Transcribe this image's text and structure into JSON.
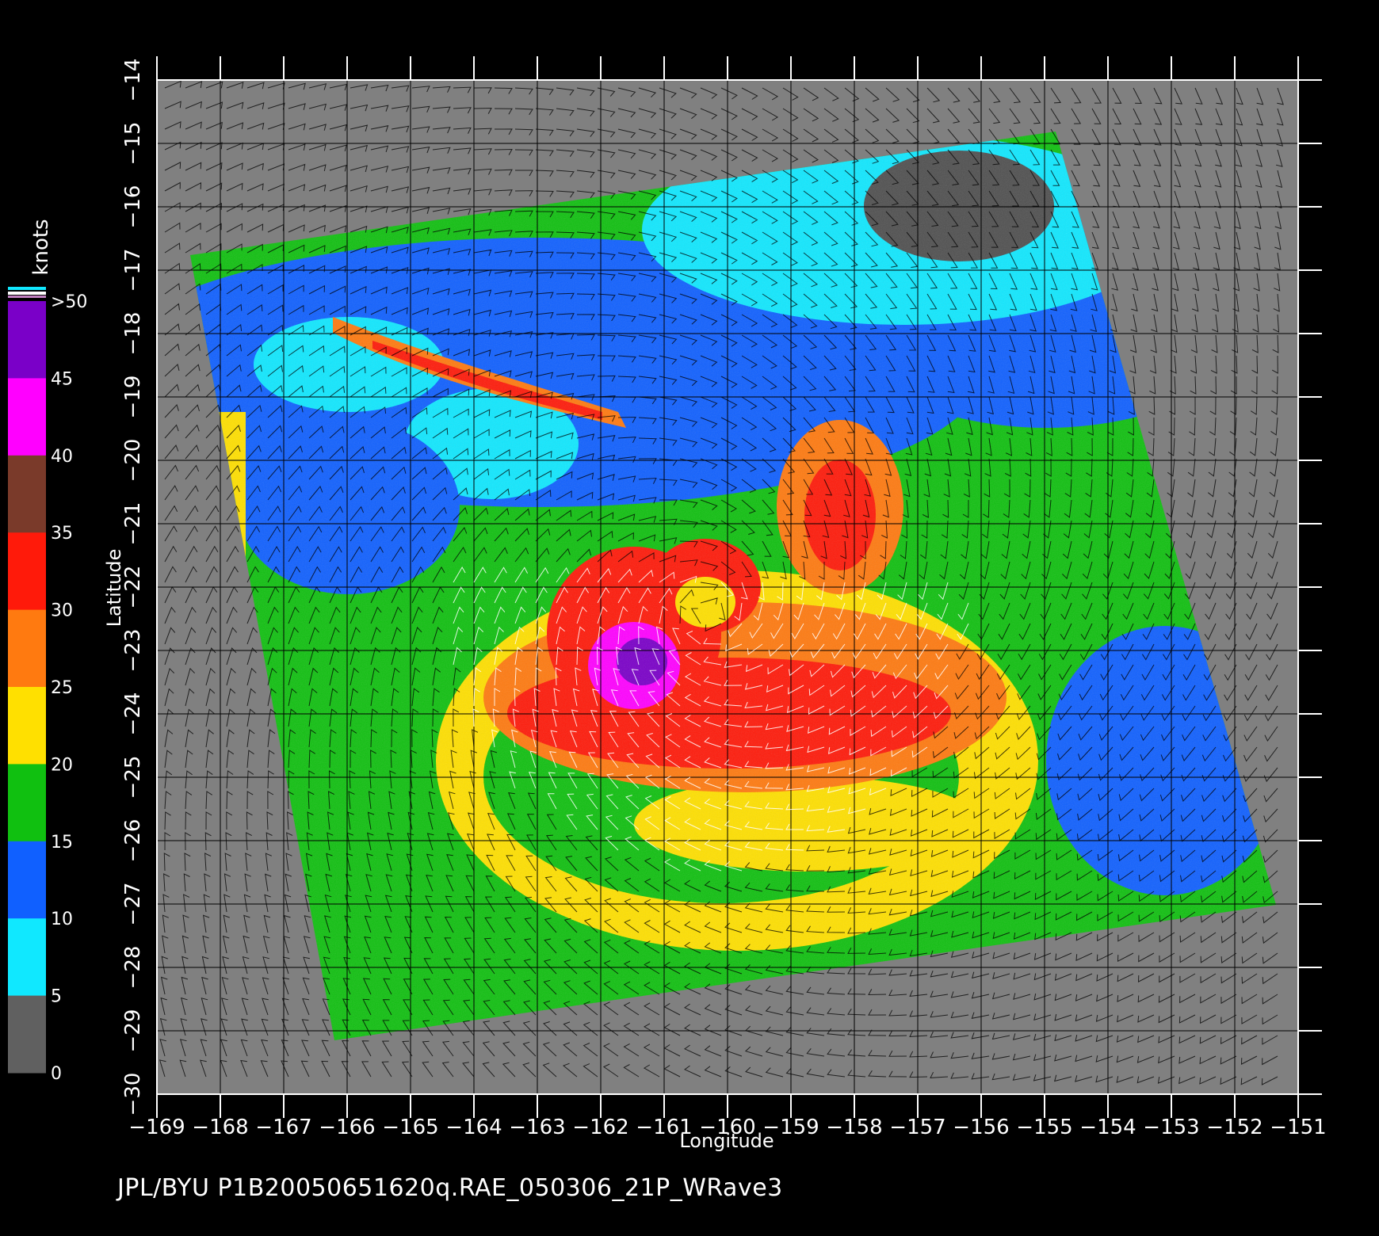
{
  "map": {
    "x_axis_label": "Longitude",
    "y_axis_label": "Latitude",
    "longitude_ticks": [
      "−169",
      "−168",
      "−167",
      "−166",
      "−165",
      "−164",
      "−163",
      "−162",
      "−161",
      "−160",
      "−159",
      "−158",
      "−157",
      "−156",
      "−155",
      "−154",
      "−153",
      "−152",
      "−151"
    ],
    "latitude_ticks": [
      "−14",
      "−15",
      "−16",
      "−17",
      "−18",
      "−19",
      "−20",
      "−21",
      "−22",
      "−23",
      "−24",
      "−25",
      "−26",
      "−27",
      "−28",
      "−29",
      "−30"
    ],
    "lon_range": [
      -169,
      -151
    ],
    "lat_range": [
      -30,
      -14
    ],
    "storm_center": {
      "lon": -160.3,
      "lat": -22.4
    },
    "background_color": "#808080",
    "grid": true
  },
  "colorbar": {
    "unit_label": "knots",
    "labels": [
      ">50",
      "45",
      "40",
      "35",
      "30",
      "25",
      "20",
      "15",
      "10",
      "5",
      "0"
    ],
    "bands": [
      {
        "range": "45-50",
        "color": "#7a00c8"
      },
      {
        "range": "40-45",
        "color": "#ff00ff"
      },
      {
        "range": "35-40",
        "color": "#7a3a2a"
      },
      {
        "range": "30-35",
        "color": "#ff1a0a"
      },
      {
        "range": "25-30",
        "color": "#ff7a10"
      },
      {
        "range": "20-25",
        "color": "#ffe000"
      },
      {
        "range": "15-20",
        "color": "#10c010"
      },
      {
        "range": "10-15",
        "color": "#1060ff"
      },
      {
        "range": "5-10",
        "color": "#10e8ff"
      },
      {
        "range": "0-5",
        "color": "#606060"
      }
    ]
  },
  "footer": {
    "text": "JPL/BYU  P1B20050651620q.RAE_050306_21P_WRave3"
  }
}
